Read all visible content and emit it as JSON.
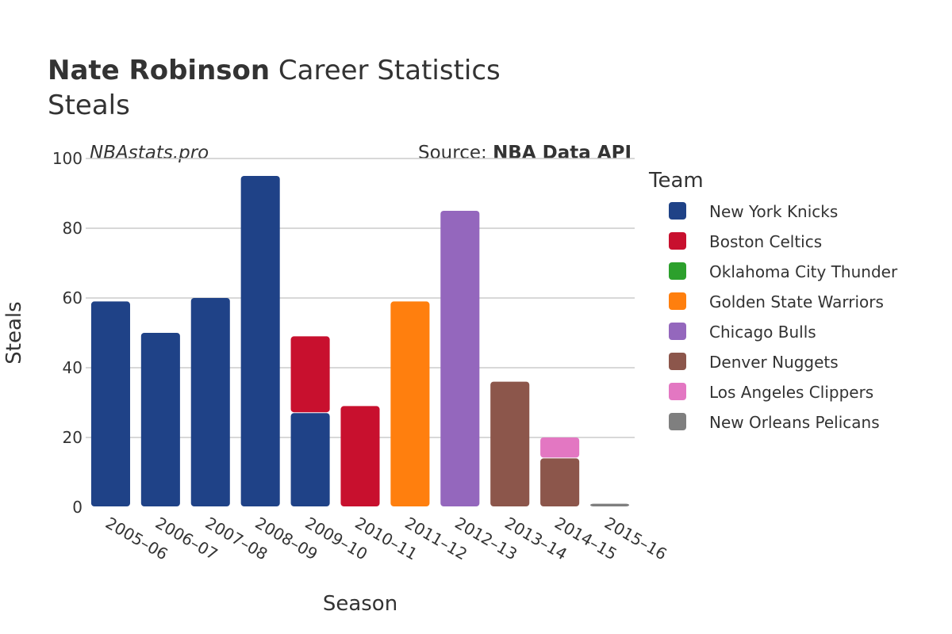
{
  "title": {
    "player": "Nate Robinson",
    "suffix": "Career Statistics",
    "metric": "Steals"
  },
  "watermark": "NBAstats.pro",
  "source": {
    "prefix": "Source: ",
    "name": "NBA Data API"
  },
  "legend_title": "Team",
  "chart_data": {
    "type": "bar",
    "stacked": true,
    "xlabel": "Season",
    "ylabel": "Steals",
    "ylim": [
      0,
      100
    ],
    "yticks": [
      0,
      20,
      40,
      60,
      80,
      100
    ],
    "grid": true,
    "legend_position": "right",
    "categories": [
      "2005–06",
      "2006–07",
      "2007–08",
      "2008–09",
      "2009–10",
      "2010–11",
      "2011–12",
      "2012–13",
      "2013–14",
      "2014–15",
      "2015–16"
    ],
    "series": [
      {
        "name": "New York Knicks",
        "color": "#1f4287",
        "values": [
          59,
          50,
          60,
          95,
          27,
          0,
          0,
          0,
          0,
          0,
          0
        ]
      },
      {
        "name": "Boston Celtics",
        "color": "#c8102e",
        "values": [
          0,
          0,
          0,
          0,
          22,
          29,
          0,
          0,
          0,
          0,
          0
        ]
      },
      {
        "name": "Oklahoma City Thunder",
        "color": "#2ca02c",
        "values": [
          0,
          0,
          0,
          0,
          0,
          0,
          0,
          0,
          0,
          0,
          0
        ]
      },
      {
        "name": "Golden State Warriors",
        "color": "#ff7f0e",
        "values": [
          0,
          0,
          0,
          0,
          0,
          0,
          59,
          0,
          0,
          0,
          0
        ]
      },
      {
        "name": "Chicago Bulls",
        "color": "#9467bd",
        "values": [
          0,
          0,
          0,
          0,
          0,
          0,
          0,
          85,
          0,
          0,
          0
        ]
      },
      {
        "name": "Denver Nuggets",
        "color": "#8c564b",
        "values": [
          0,
          0,
          0,
          0,
          0,
          0,
          0,
          0,
          36,
          14,
          0
        ]
      },
      {
        "name": "Los Angeles Clippers",
        "color": "#e377c2",
        "values": [
          0,
          0,
          0,
          0,
          0,
          0,
          0,
          0,
          0,
          6,
          0
        ]
      },
      {
        "name": "New Orleans Pelicans",
        "color": "#7f7f7f",
        "values": [
          0,
          0,
          0,
          0,
          0,
          0,
          0,
          0,
          0,
          0,
          1
        ]
      }
    ]
  }
}
